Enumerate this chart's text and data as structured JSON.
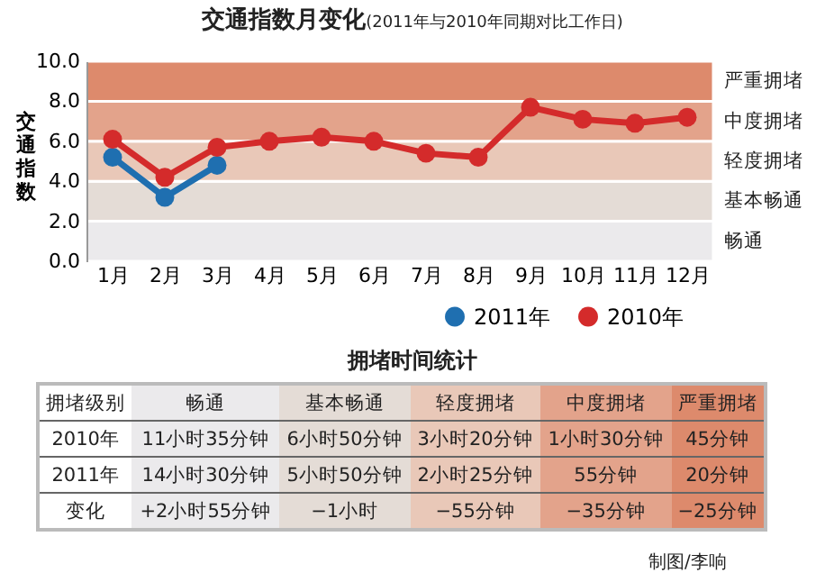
{
  "chart_data": [
    {
      "type": "line",
      "title": "交通指数月变化",
      "subtitle": "(2011年与2010年同期对比工作日)",
      "ylabel": "交通指数",
      "categories": [
        "1月",
        "2月",
        "3月",
        "4月",
        "5月",
        "6月",
        "7月",
        "8月",
        "9月",
        "10月",
        "11月",
        "12月"
      ],
      "series": [
        {
          "name": "2011年",
          "color": "#1f6fb0",
          "values": [
            5.2,
            3.2,
            4.8,
            null,
            null,
            null,
            null,
            null,
            null,
            null,
            null,
            null
          ]
        },
        {
          "name": "2010年",
          "color": "#d42b2b",
          "values": [
            6.1,
            4.2,
            5.7,
            6.0,
            6.2,
            6.0,
            5.4,
            5.2,
            7.7,
            7.1,
            6.9,
            7.2
          ]
        }
      ],
      "ylim": [
        0,
        10
      ],
      "yticks": [
        {
          "value": 0,
          "label": "0.0"
        },
        {
          "value": 2,
          "label": "2.0"
        },
        {
          "value": 4,
          "label": "4.0"
        },
        {
          "value": 6,
          "label": "6.0"
        },
        {
          "value": 8,
          "label": "8.0"
        },
        {
          "value": 10,
          "label": "10.0"
        }
      ],
      "bands": [
        {
          "axis": "y",
          "from": 0,
          "to": 2,
          "label": "畅通",
          "color": "#ebeaec"
        },
        {
          "axis": "y",
          "from": 2,
          "to": 4,
          "label": "基本畅通",
          "color": "#e4dcd6"
        },
        {
          "axis": "y",
          "from": 4,
          "to": 6,
          "label": "轻度拥堵",
          "color": "#e9c8b8"
        },
        {
          "axis": "y",
          "from": 6,
          "to": 8,
          "label": "中度拥堵",
          "color": "#e3a38b"
        },
        {
          "axis": "y",
          "from": 8,
          "to": 10,
          "label": "严重拥堵",
          "color": "#dd8a6c"
        }
      ],
      "marker": "circle",
      "legend": "bottom right",
      "grid": false
    },
    {
      "type": "other",
      "title": "拥堵时间统计",
      "xlabel": "拥堵级别",
      "categories": [
        "畅通",
        "基本畅通",
        "轻度拥堵",
        "中度拥堵",
        "严重拥堵"
      ],
      "y_categories": [
        "2010年",
        "2011年",
        "变化"
      ],
      "colors": [
        "#ebeaec",
        "#e4dcd6",
        "#e9c8b8",
        "#e3a38b",
        "#dd8a6c"
      ],
      "cell_labels": [
        [
          "11小时35分钟",
          "6小时50分钟",
          "3小时20分钟",
          "1小时30分钟",
          "45分钟"
        ],
        [
          "14小时30分钟",
          "5小时50分钟",
          "2小时25分钟",
          "55分钟",
          "20分钟"
        ],
        [
          "+2小时55分钟",
          "−1小时",
          "−55分钟",
          "−35分钟",
          "−25分钟"
        ]
      ],
      "annotations": [
        "制图/李响"
      ]
    }
  ]
}
